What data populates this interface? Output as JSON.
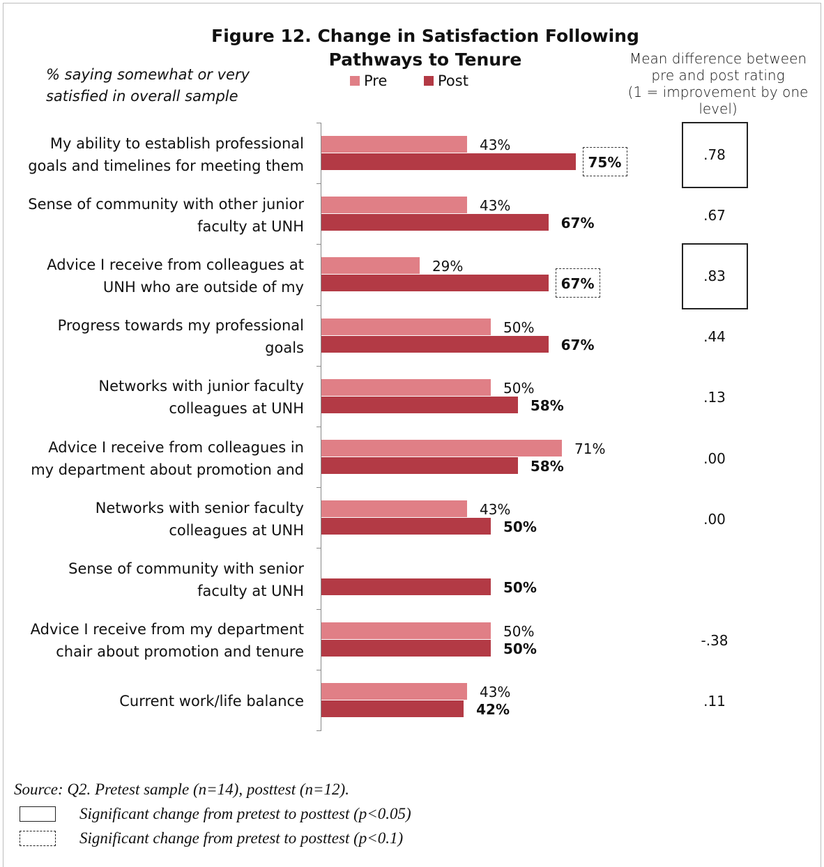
{
  "chart_data": {
    "type": "bar",
    "orientation": "horizontal",
    "title": "Figure 12. Change in Satisfaction Following Pathways to Tenure",
    "title_lines": [
      "Figure 12. Change in Satisfaction Following",
      "Pathways to Tenure"
    ],
    "subtitle_lines": [
      "% saying somewhat or very",
      "satisfied in overall sample"
    ],
    "legend": {
      "placement": "top",
      "entries": [
        "Pre",
        "Post"
      ]
    },
    "colors": {
      "Pre": "#e07f86",
      "Post": "#b33a45"
    },
    "mean_header_lines": [
      "Mean difference between",
      "pre and post rating",
      "(1 = improvement by one",
      "level)"
    ],
    "value_max": 100,
    "categories": [
      {
        "label_lines": [
          "My ability to establish professional",
          "goals and timelines for meeting them"
        ],
        "pre": 43,
        "post": 75,
        "pre_label": "43%",
        "post_label": "75%",
        "mean": ".78",
        "significance": "p<0.05 mean; p<0.1 post"
      },
      {
        "label_lines": [
          "Sense of community with other junior",
          "faculty at UNH"
        ],
        "pre": 43,
        "post": 67,
        "pre_label": "43%",
        "post_label": "67%",
        "mean": ".67",
        "significance": ""
      },
      {
        "label_lines": [
          "Advice I receive from colleagues at",
          "UNH who are outside of my"
        ],
        "pre": 29,
        "post": 67,
        "pre_label": "29%",
        "post_label": "67%",
        "mean": ".83",
        "significance": "p<0.05 mean; p<0.1 post"
      },
      {
        "label_lines": [
          "Progress towards my professional",
          "goals"
        ],
        "pre": 50,
        "post": 67,
        "pre_label": "50%",
        "post_label": "67%",
        "mean": ".44",
        "significance": ""
      },
      {
        "label_lines": [
          "Networks with junior faculty",
          "colleagues at UNH"
        ],
        "pre": 50,
        "post": 58,
        "pre_label": "50%",
        "post_label": "58%",
        "mean": ".13",
        "significance": ""
      },
      {
        "label_lines": [
          "Advice I receive from colleagues in",
          "my department about promotion and"
        ],
        "pre": 71,
        "post": 58,
        "pre_label": "71%",
        "post_label": "58%",
        "mean": ".00",
        "significance": ""
      },
      {
        "label_lines": [
          "Networks with senior faculty",
          "colleagues at UNH"
        ],
        "pre": 43,
        "post": 50,
        "pre_label": "43%",
        "post_label": "50%",
        "mean": ".00",
        "significance": ""
      },
      {
        "label_lines": [
          "Sense of community with senior",
          "faculty at UNH"
        ],
        "pre": null,
        "post": 50,
        "pre_label": "",
        "post_label": "50%",
        "mean": "",
        "significance": ""
      },
      {
        "label_lines": [
          "Advice I receive from my department",
          "chair about promotion and tenure"
        ],
        "pre": 50,
        "post": 50,
        "pre_label": "50%",
        "post_label": "50%",
        "mean": "-.38",
        "significance": ""
      },
      {
        "label_lines": [
          "Current work/life balance"
        ],
        "pre": 43,
        "post": 42,
        "pre_label": "43%",
        "post_label": "42%",
        "mean": ".11",
        "significance": ""
      }
    ]
  },
  "footer": {
    "source": "Source: Q2. Pretest sample (n=14), posttest (n=12).",
    "key_solid": "Significant change from pretest to posttest  (p<0.05)",
    "key_dashed": "Significant change from pretest to posttest  (p<0.1)"
  }
}
